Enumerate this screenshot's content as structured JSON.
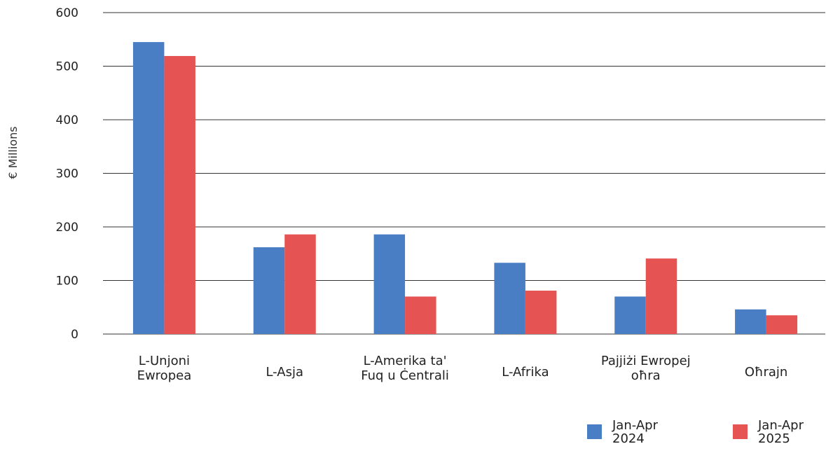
{
  "chart_data": {
    "type": "bar",
    "title": "",
    "xlabel": "",
    "ylabel": "€ Millions",
    "ylim": [
      0,
      600
    ],
    "yticks": [
      0,
      100,
      200,
      300,
      400,
      500,
      600
    ],
    "grid": true,
    "legend_position": "bottom-right",
    "categories": [
      [
        "L-Unjoni",
        "Ewropea"
      ],
      [
        "L-Asja"
      ],
      [
        "L-Amerika ta'",
        "Fuq u Ċentrali"
      ],
      [
        "L-Afrika"
      ],
      [
        "Pajjiżi Ewropej",
        "oħra"
      ],
      [
        "Oħrajn"
      ]
    ],
    "series": [
      {
        "name": [
          "Jan-Apr",
          "2024"
        ],
        "color": "#4a7ec4",
        "values": [
          545,
          162,
          186,
          133,
          70,
          46
        ]
      },
      {
        "name": [
          "Jan-Apr",
          "2025"
        ],
        "color": "#e55353",
        "values": [
          519,
          186,
          70,
          81,
          141,
          35
        ]
      }
    ]
  }
}
